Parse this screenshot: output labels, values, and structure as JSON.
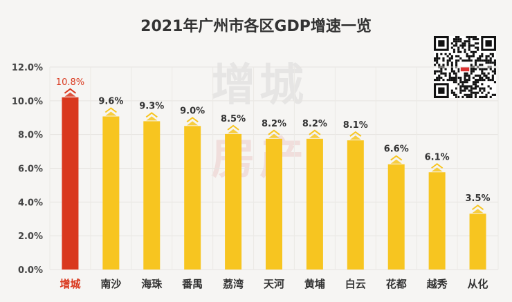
{
  "chart_data": {
    "type": "bar",
    "title": "2021年广州市各区GDP增速一览",
    "categories": [
      "增城",
      "南沙",
      "海珠",
      "番禺",
      "荔湾",
      "天河",
      "黄埔",
      "白云",
      "花都",
      "越秀",
      "从化"
    ],
    "values": [
      10.8,
      9.6,
      9.3,
      9.0,
      8.5,
      8.2,
      8.2,
      8.1,
      6.6,
      6.1,
      3.5
    ],
    "data_labels": [
      "10.8%",
      "9.6%",
      "9.3%",
      "9.0%",
      "8.5%",
      "8.2%",
      "8.2%",
      "8.1%",
      "6.6%",
      "6.1%",
      "3.5%"
    ],
    "ylim": [
      0,
      12
    ],
    "yticks": [
      "0.0%",
      "2.0%",
      "4.0%",
      "6.0%",
      "8.0%",
      "10.0%",
      "12.0%"
    ],
    "grid": true,
    "colors": {
      "highlight": "#d9381e",
      "default": "#f7c520",
      "text": "#333333"
    },
    "highlight_category": "增城"
  },
  "watermark": {
    "line1": "增城",
    "line2": "房产"
  },
  "qr_code": {
    "icon": "qr-code-icon"
  }
}
